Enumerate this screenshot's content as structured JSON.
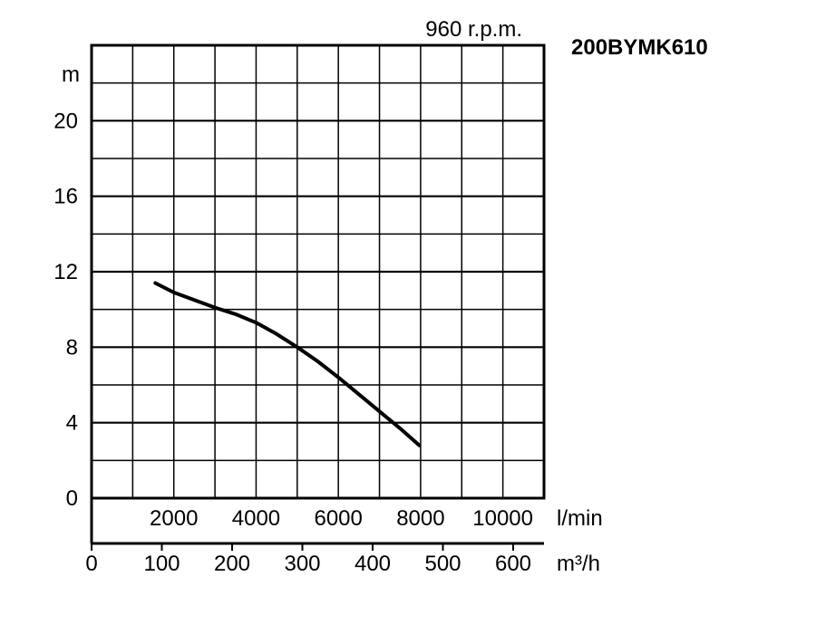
{
  "chart_data": {
    "type": "line",
    "title": "200BYMK610",
    "subtitle": "960 r.p.m.",
    "ylabel": "m",
    "ylim": [
      0,
      24
    ],
    "yticks": [
      "0",
      "4",
      "8",
      "12",
      "16",
      "20"
    ],
    "ytick_values": [
      0,
      4,
      8,
      12,
      16,
      20
    ],
    "xlabel": "l/min",
    "xlim": [
      0,
      11000
    ],
    "xticks": [
      "2000",
      "4000",
      "6000",
      "8000",
      "10000"
    ],
    "xtick_values": [
      2000,
      4000,
      6000,
      8000,
      10000
    ],
    "x2label": "m³/h",
    "x2ticks": [
      "0",
      "100",
      "200",
      "300",
      "400",
      "500",
      "600"
    ],
    "x2tick_values": [
      0,
      100,
      200,
      300,
      400,
      500,
      600
    ],
    "grid": true,
    "series": [
      {
        "x": [
          1550,
          2000,
          2500,
          3000,
          3500,
          4000,
          4500,
          5000,
          5500,
          6000,
          6500,
          7000,
          7500,
          7970
        ],
        "y": [
          11.4,
          10.9,
          10.5,
          10.1,
          9.75,
          9.3,
          8.7,
          8.0,
          7.25,
          6.4,
          5.5,
          4.6,
          3.7,
          2.8
        ]
      }
    ]
  }
}
